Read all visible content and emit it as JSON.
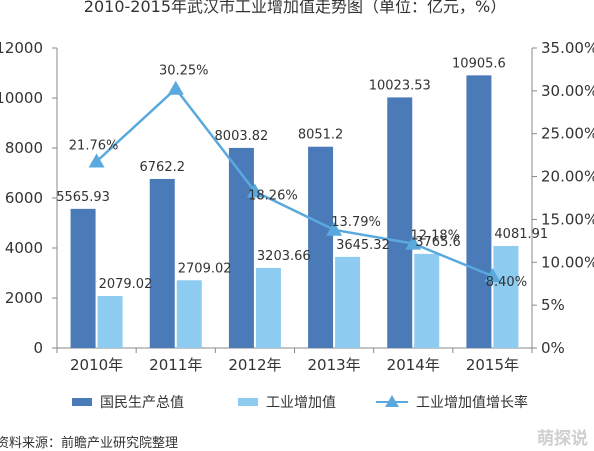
{
  "chart_data": {
    "type": "bar",
    "title": "2010-2015年武汉市工业增加值走势图（单位：亿元，%）",
    "categories": [
      "2010年",
      "2011年",
      "2012年",
      "2013年",
      "2014年",
      "2015年"
    ],
    "series": [
      {
        "name": "国民生产总值",
        "type": "bar",
        "axis": "left",
        "color": "#4a7ab8",
        "values": [
          5565.93,
          6762.2,
          8003.82,
          8051.2,
          10023.53,
          10905.6
        ],
        "labels": [
          "5565.93",
          "6762.2",
          "8003.82",
          "8051.2",
          "10023.53",
          "10905.6"
        ]
      },
      {
        "name": "工业增加值",
        "type": "bar",
        "axis": "left",
        "color": "#8ecbf0",
        "values": [
          2079.02,
          2709.02,
          3203.66,
          3645.32,
          3765.6,
          4081.91
        ],
        "labels": [
          "2079.02",
          "2709.02",
          "3203.66",
          "3645.32",
          "3765.6",
          "4081.91"
        ]
      },
      {
        "name": "工业增加值增长率",
        "type": "line",
        "axis": "right",
        "color": "#5aa9de",
        "values": [
          21.76,
          30.25,
          18.26,
          13.79,
          12.18,
          8.4
        ],
        "labels": [
          "21.76%",
          "30.25%",
          "18.26%",
          "13.79%",
          "12.18%",
          "8.40%"
        ]
      }
    ],
    "y_left": {
      "min": 0,
      "max": 12000,
      "ticks": [
        "0",
        "2000",
        "4000",
        "6000",
        "8000",
        "10000",
        "12000"
      ]
    },
    "y_right": {
      "min": 0,
      "max": 35,
      "ticks": [
        "0%",
        "5%",
        "10.00%",
        "15.00%",
        "20.00%",
        "25.00%",
        "30.00%",
        "35.00%"
      ]
    },
    "legend_position": "bottom",
    "grid": false
  },
  "source_text": "资料来源：前瞻产业研究院整理",
  "watermark_text": "萌探说"
}
